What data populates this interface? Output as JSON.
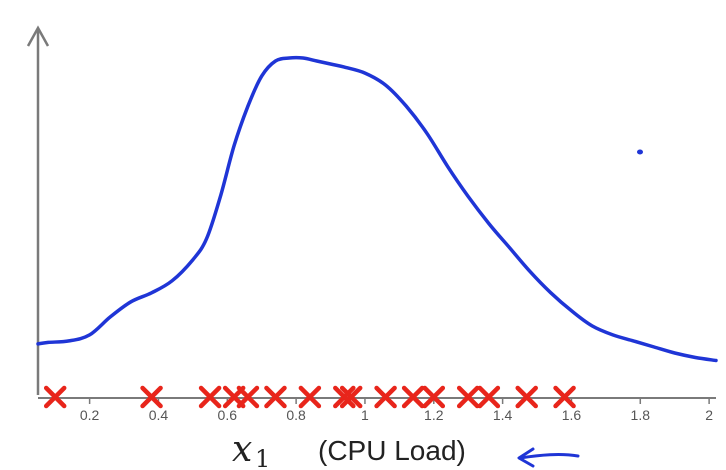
{
  "chart_data": {
    "type": "scatter",
    "title": "",
    "xlabel": {
      "symbol": "x",
      "subscript": "1",
      "text": "(CPU Load)"
    },
    "ylabel": "",
    "xlim": [
      0.05,
      2.02
    ],
    "ylim": [
      0,
      1
    ],
    "x_ticks": [
      "0.2",
      "0.4",
      "0.6",
      "0.8",
      "1",
      "1.2",
      "1.4",
      "1.6",
      "1.8",
      "2"
    ],
    "grid": false,
    "series": [
      {
        "kind": "points",
        "marker": "x",
        "color": "#e8251b",
        "x": [
          0.1,
          0.38,
          0.55,
          0.62,
          0.66,
          0.74,
          0.84,
          0.94,
          0.96,
          1.06,
          1.14,
          1.2,
          1.3,
          1.36,
          1.47,
          1.58
        ]
      },
      {
        "kind": "curve",
        "color": "#1f35d6",
        "x": [
          0.05,
          0.08,
          0.14,
          0.2,
          0.26,
          0.32,
          0.38,
          0.44,
          0.5,
          0.54,
          0.58,
          0.62,
          0.66,
          0.7,
          0.74,
          0.78,
          0.82,
          0.86,
          0.9,
          0.94,
          1.0,
          1.06,
          1.12,
          1.18,
          1.24,
          1.3,
          1.36,
          1.42,
          1.48,
          1.54,
          1.6,
          1.66,
          1.72,
          1.78,
          1.84,
          1.9,
          1.96,
          2.02
        ],
        "y": [
          0.06,
          0.065,
          0.07,
          0.09,
          0.15,
          0.2,
          0.23,
          0.27,
          0.34,
          0.41,
          0.55,
          0.72,
          0.85,
          0.95,
          1.0,
          1.01,
          1.01,
          1.0,
          0.99,
          0.98,
          0.96,
          0.92,
          0.85,
          0.76,
          0.65,
          0.55,
          0.46,
          0.38,
          0.3,
          0.23,
          0.17,
          0.12,
          0.09,
          0.07,
          0.05,
          0.03,
          0.015,
          0.005
        ]
      }
    ],
    "annotations": [
      {
        "kind": "arrow",
        "direction": "left",
        "color": "#1f35d6",
        "position": "right-of-xlabel"
      },
      {
        "kind": "dot",
        "color": "#1f35d6",
        "position": "upper-right"
      }
    ]
  }
}
